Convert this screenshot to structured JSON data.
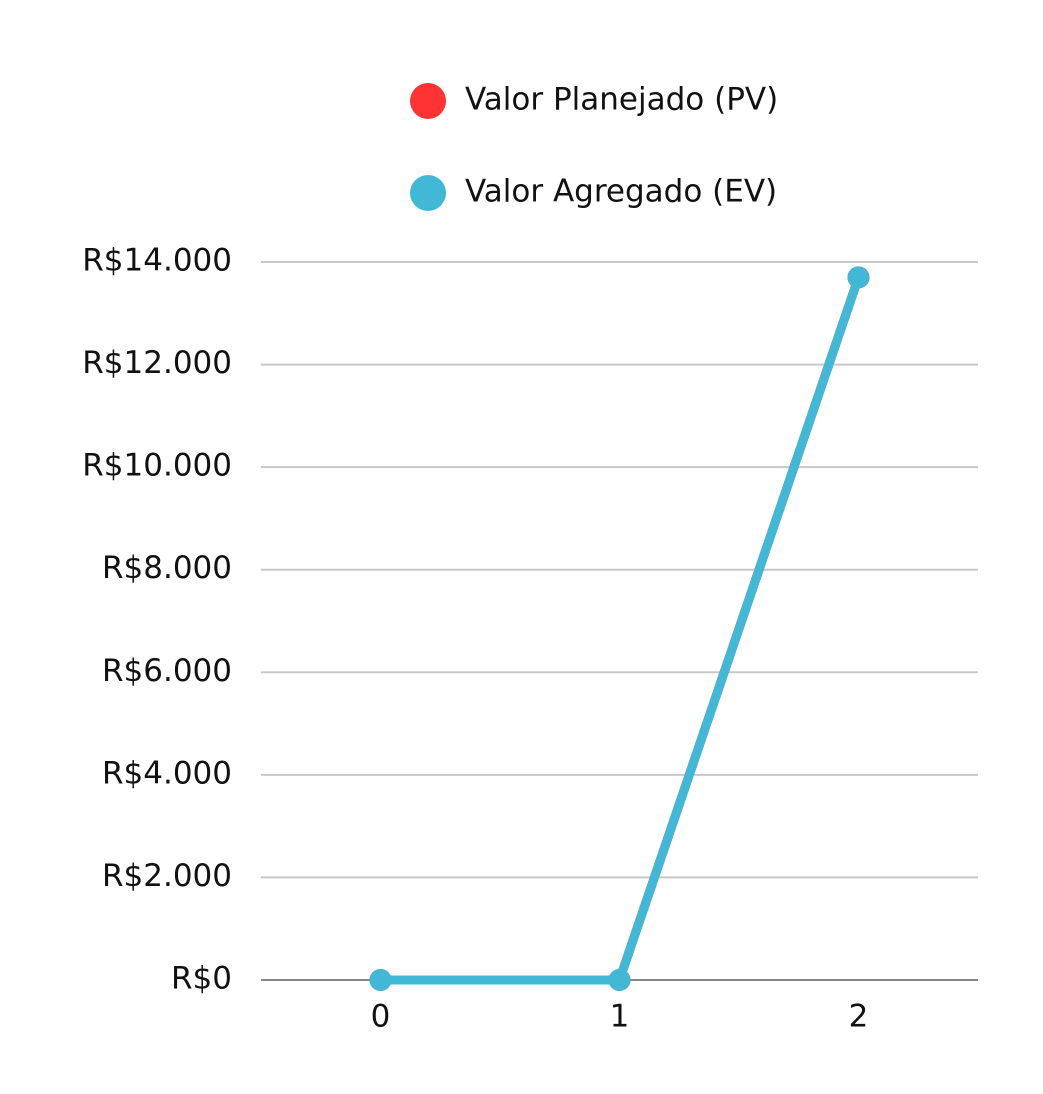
{
  "chart_data": {
    "type": "line",
    "x": [
      0,
      1,
      2
    ],
    "series": [
      {
        "name": "Valor Planejado (PV)",
        "color": "#ff3333",
        "values": [
          0,
          0,
          13700
        ]
      },
      {
        "name": "Valor Agregado (EV)",
        "color": "#41b8d5",
        "values": [
          0,
          0,
          13700
        ]
      }
    ],
    "xlim": [
      -0.5,
      2.5
    ],
    "xticks": [
      0,
      1,
      2
    ],
    "ylim": [
      0,
      14000
    ],
    "yticks": [
      {
        "value": 0,
        "label": "R$0"
      },
      {
        "value": 2000,
        "label": "R$2.000"
      },
      {
        "value": 4000,
        "label": "R$4.000"
      },
      {
        "value": 6000,
        "label": "R$6.000"
      },
      {
        "value": 8000,
        "label": "R$8.000"
      },
      {
        "value": 10000,
        "label": "R$10.000"
      },
      {
        "value": 12000,
        "label": "R$12.000"
      },
      {
        "value": 14000,
        "label": "R$14.000"
      }
    ],
    "grid": true,
    "legend": "top"
  }
}
